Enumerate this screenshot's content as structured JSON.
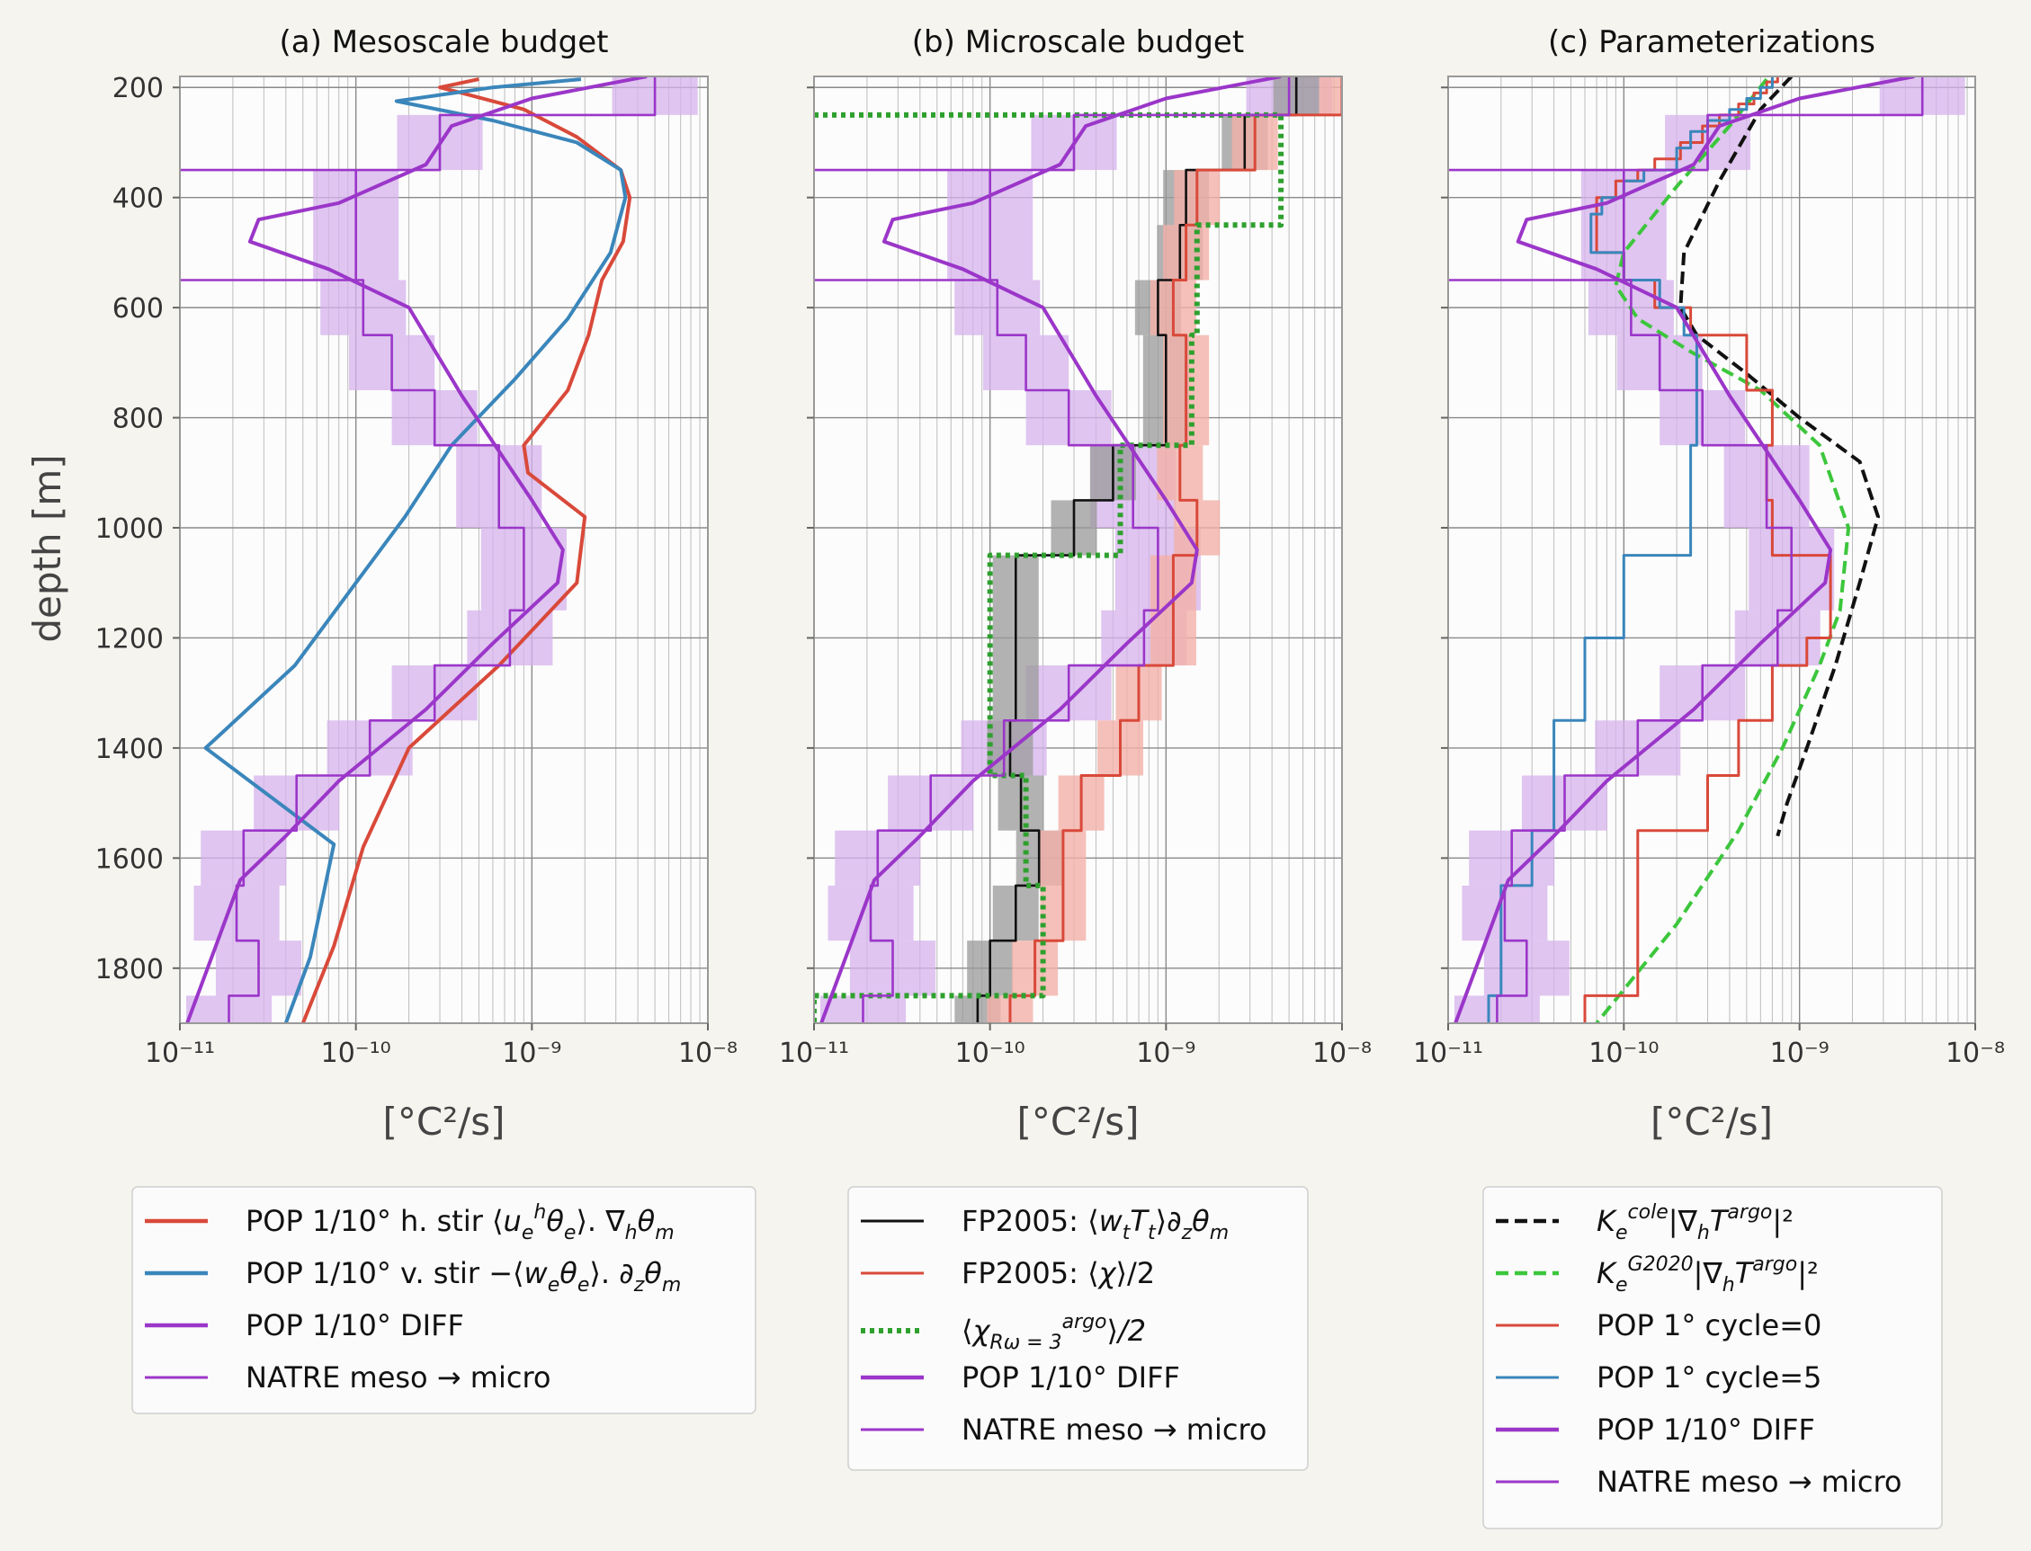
{
  "figure": {
    "ylabel": "depth [m]",
    "xlabel": "[°C²/s]",
    "x_ticks": [
      "10⁻¹¹",
      "10⁻¹⁰",
      "10⁻⁹",
      "10⁻⁸"
    ],
    "y_ticks": [
      "200",
      "400",
      "600",
      "800",
      "1000",
      "1200",
      "1400",
      "1600",
      "1800"
    ],
    "colors": {
      "red": "#d9493a",
      "blue": "#3a86bb",
      "purple": "#9b36c9",
      "black": "#111111",
      "green": "#2ea02e",
      "lightgreen": "#3cc63c",
      "shade_purple": "#d6b3ec",
      "shade_gray": "#999999",
      "shade_red": "#f2b0a8"
    }
  },
  "chart_data": [
    {
      "type": "line",
      "title": "(a) Mesoscale budget",
      "xscale": "log",
      "xlim": [
        1e-11,
        1e-08
      ],
      "ylim": [
        1900,
        180
      ],
      "grid": true,
      "series": [
        {
          "name": "POP 1/10° h. stir ⟨u_e^h θ_e⟩. ∇_h θ_m",
          "color": "red",
          "x": [
            5e-10,
            3e-10,
            4e-10,
            9e-10,
            1.8e-09,
            3.2e-09,
            3.6e-09,
            3.3e-09,
            2.5e-09,
            2.1e-09,
            1.6e-09,
            1.2e-09,
            9e-10,
            9.5e-10,
            2e-09,
            1.8e-09,
            6.5e-10,
            2e-10,
            1.1e-10,
            7.5e-11,
            5e-11
          ],
          "y": [
            185,
            200,
            210,
            240,
            290,
            350,
            400,
            480,
            550,
            650,
            750,
            800,
            850,
            900,
            980,
            1100,
            1250,
            1400,
            1580,
            1760,
            1900
          ]
        },
        {
          "name": "POP 1/10° v. stir −⟨w_e θ_e⟩. ∂_z θ_m",
          "color": "blue",
          "x": [
            1.9e-09,
            6e-10,
            1.7e-10,
            6e-10,
            1.8e-09,
            3.2e-09,
            3.4e-09,
            2.8e-09,
            1.6e-09,
            8e-10,
            3.5e-10,
            1.9e-10,
            1e-10,
            4.5e-11,
            1.4e-11,
            7.5e-11,
            5.5e-11,
            4e-11
          ],
          "y": [
            185,
            200,
            225,
            260,
            300,
            350,
            400,
            500,
            620,
            730,
            850,
            980,
            1100,
            1250,
            1400,
            1575,
            1780,
            1900
          ]
        },
        {
          "name": "POP 1/10° DIFF",
          "color": "purple",
          "x": [
            4.5e-09,
            1e-09,
            3.5e-10,
            2.5e-10,
            8e-11,
            2.8e-11,
            2.5e-11,
            7e-11,
            2e-10,
            4e-10,
            1e-09,
            1.5e-09,
            1.4e-09,
            6e-10,
            2.5e-10,
            8e-11,
            4e-11,
            2.2e-11,
            1.6e-11,
            1.1e-11
          ],
          "y": [
            180,
            220,
            270,
            340,
            410,
            440,
            480,
            530,
            600,
            760,
            950,
            1040,
            1100,
            1210,
            1330,
            1460,
            1560,
            1640,
            1760,
            1900
          ]
        },
        {
          "name": "NATRE meso → micro",
          "color": "purple",
          "style": "step",
          "x": [
            5e-09,
            3e-10,
            1e-11,
            1e-10,
            1e-11,
            1.1e-10,
            1.6e-10,
            2.8e-10,
            6.5e-10,
            9e-10,
            7.5e-10,
            2.8e-10,
            1.2e-10,
            4.6e-11,
            2.3e-11,
            2.1e-11,
            2.8e-11,
            1.9e-11
          ],
          "y": [
            180,
            250,
            350,
            350,
            550,
            550,
            650,
            750,
            850,
            1000,
            1150,
            1250,
            1350,
            1450,
            1550,
            1650,
            1750,
            1850
          ]
        }
      ]
    },
    {
      "type": "line",
      "title": "(b) Microscale budget",
      "xscale": "log",
      "xlim": [
        1e-11,
        1e-08
      ],
      "ylim": [
        1900,
        180
      ],
      "grid": true,
      "series": [
        {
          "name": "FP2005: ⟨w_t T_t⟩∂_z θ_m",
          "color": "black",
          "style": "step",
          "x": [
            5.5e-09,
            2.8e-09,
            1.3e-09,
            1.2e-09,
            9e-10,
            1e-09,
            5e-10,
            3e-10,
            1.4e-10,
            1.3e-10,
            1.5e-10,
            1.9e-10,
            1.4e-10,
            1e-10,
            8.5e-11
          ],
          "y": [
            180,
            250,
            350,
            450,
            550,
            650,
            850,
            950,
            1050,
            1350,
            1450,
            1550,
            1650,
            1750,
            1850
          ]
        },
        {
          "name": "FP2005: ⟨χ⟩/2",
          "color": "red",
          "style": "step",
          "x": [
            1e-08,
            3.2e-09,
            1.5e-09,
            1.3e-09,
            1.1e-09,
            1.3e-09,
            1.2e-09,
            1.5e-09,
            1.1e-09,
            7e-10,
            5.5e-10,
            3.3e-10,
            2.6e-10,
            1.8e-10,
            1.3e-10
          ],
          "y": [
            180,
            250,
            350,
            450,
            550,
            650,
            850,
            950,
            1050,
            1250,
            1350,
            1450,
            1550,
            1750,
            1850
          ]
        },
        {
          "name": "⟨χ⟩^argo_Rω=3 /2",
          "color": "green",
          "style": "step",
          "x": [
            1e-11,
            4.5e-09,
            1.5e-09,
            1.4e-09,
            5.5e-10,
            1e-10,
            1.6e-10,
            2e-10,
            1e-11
          ],
          "y": [
            250,
            250,
            450,
            650,
            850,
            1050,
            1450,
            1650,
            1850
          ]
        },
        {
          "name": "POP 1/10° DIFF",
          "color": "purple",
          "x": [
            4.5e-09,
            1e-09,
            3.5e-10,
            2.5e-10,
            8e-11,
            2.8e-11,
            2.5e-11,
            7e-11,
            2e-10,
            4e-10,
            1e-09,
            1.5e-09,
            1.4e-09,
            6e-10,
            2.5e-10,
            8e-11,
            4e-11,
            2.2e-11,
            1.6e-11,
            1.1e-11
          ],
          "y": [
            180,
            220,
            270,
            340,
            410,
            440,
            480,
            530,
            600,
            760,
            950,
            1040,
            1100,
            1210,
            1330,
            1460,
            1560,
            1640,
            1760,
            1900
          ]
        },
        {
          "name": "NATRE meso → micro",
          "color": "purple",
          "style": "step",
          "x": [
            5e-09,
            3e-10,
            1e-11,
            1e-10,
            1e-11,
            1.1e-10,
            1.6e-10,
            2.8e-10,
            6.5e-10,
            9e-10,
            7.5e-10,
            2.8e-10,
            1.2e-10,
            4.6e-11,
            2.3e-11,
            2.1e-11,
            2.8e-11,
            1.9e-11
          ],
          "y": [
            180,
            250,
            350,
            350,
            550,
            550,
            650,
            750,
            850,
            1000,
            1150,
            1250,
            1350,
            1450,
            1550,
            1650,
            1750,
            1850
          ]
        }
      ]
    },
    {
      "type": "line",
      "title": "(c) Parameterizations",
      "xscale": "log",
      "xlim": [
        1e-11,
        1e-08
      ],
      "ylim": [
        1900,
        180
      ],
      "grid": true,
      "series": [
        {
          "name": "K_e^cole|∇_h T^argo|²",
          "color": "black",
          "style": "dashed",
          "x": [
            9e-10,
            6e-10,
            3.5e-10,
            2.2e-10,
            2.1e-10,
            2.6e-10,
            5e-10,
            1e-09,
            2.2e-09,
            2.8e-09,
            2.2e-09,
            1.6e-09,
            1.1e-09,
            8.5e-10,
            7.5e-10
          ],
          "y": [
            180,
            240,
            370,
            500,
            600,
            650,
            720,
            800,
            880,
            980,
            1100,
            1250,
            1400,
            1500,
            1560
          ]
        },
        {
          "name": "K_e^G2020|∇_h T^argo|²",
          "color": "lightgreen",
          "style": "dashed",
          "x": [
            6.5e-10,
            4e-10,
            2e-10,
            1e-10,
            9e-11,
            1.2e-10,
            2.4e-10,
            6e-10,
            1.3e-09,
            1.9e-09,
            1.7e-09,
            1.3e-09,
            8e-10,
            4.5e-10,
            2e-10,
            7e-11
          ],
          "y": [
            185,
            270,
            380,
            500,
            560,
            620,
            680,
            750,
            850,
            1000,
            1150,
            1250,
            1400,
            1550,
            1720,
            1900
          ]
        },
        {
          "name": "POP 1° cycle=0",
          "color": "red",
          "style": "step",
          "x": [
            7.5e-10,
            6.5e-10,
            5.5e-10,
            4.5e-10,
            3.5e-10,
            2.8e-10,
            2.1e-10,
            1.5e-10,
            1.2e-10,
            9e-11,
            7e-11,
            1e-10,
            1.5e-10,
            2.4e-10,
            5e-10,
            7e-10,
            6.5e-10,
            7e-10,
            1.5e-09,
            1.1e-09,
            7e-10,
            4.5e-10,
            3e-10,
            1.2e-10,
            6e-11
          ],
          "y": [
            180,
            190,
            210,
            230,
            250,
            270,
            300,
            330,
            350,
            370,
            400,
            500,
            550,
            600,
            650,
            750,
            850,
            950,
            1050,
            1200,
            1250,
            1350,
            1450,
            1550,
            1850
          ]
        },
        {
          "name": "POP 1° cycle=5",
          "color": "blue",
          "style": "step",
          "x": [
            7e-10,
            6e-10,
            5e-10,
            4e-10,
            3e-10,
            2.4e-10,
            2e-10,
            1.3e-10,
            1e-10,
            7.5e-11,
            6.5e-11,
            1e-10,
            1.6e-10,
            2.2e-10,
            2.6e-10,
            2.4e-10,
            1e-10,
            6e-11,
            4e-11,
            3e-11,
            2e-11,
            1.7e-11
          ],
          "y": [
            180,
            200,
            220,
            240,
            260,
            280,
            310,
            350,
            370,
            400,
            430,
            500,
            550,
            600,
            650,
            850,
            1050,
            1200,
            1350,
            1550,
            1650,
            1850
          ]
        },
        {
          "name": "POP 1/10° DIFF",
          "color": "purple",
          "x": [
            4.5e-09,
            1e-09,
            3.5e-10,
            2.5e-10,
            8e-11,
            2.8e-11,
            2.5e-11,
            7e-11,
            2e-10,
            4e-10,
            1e-09,
            1.5e-09,
            1.4e-09,
            6e-10,
            2.5e-10,
            8e-11,
            4e-11,
            2.2e-11,
            1.6e-11,
            1.1e-11
          ],
          "y": [
            180,
            220,
            270,
            340,
            410,
            440,
            480,
            530,
            600,
            760,
            950,
            1040,
            1100,
            1210,
            1330,
            1460,
            1560,
            1640,
            1760,
            1900
          ]
        },
        {
          "name": "NATRE meso → micro",
          "color": "purple",
          "style": "step",
          "x": [
            5e-09,
            3e-10,
            1e-11,
            1e-10,
            1e-11,
            1.1e-10,
            1.6e-10,
            2.8e-10,
            6.5e-10,
            9e-10,
            7.5e-10,
            2.8e-10,
            1.2e-10,
            4.6e-11,
            2.3e-11,
            2.1e-11,
            2.8e-11,
            1.9e-11
          ],
          "y": [
            180,
            250,
            350,
            350,
            550,
            550,
            650,
            750,
            850,
            1000,
            1150,
            1250,
            1350,
            1450,
            1550,
            1650,
            1750,
            1850
          ]
        }
      ]
    }
  ],
  "legends": {
    "a": [
      {
        "pre": "POP 1/10° h. stir ⟨",
        "math": "u",
        "sub": "e",
        "sup": "h",
        "post": "θ",
        "sub2": "e",
        "tail": "⟩. ∇",
        "sub3": "h",
        "tail2": "θ",
        "sub4": "m",
        "color": "red",
        "kind": "thick"
      },
      {
        "pre": "POP 1/10° v. stir −⟨",
        "math": "w",
        "sub": "e",
        "post": "θ",
        "sub2": "e",
        "tail": "⟩. ∂",
        "sub3": "z",
        "tail2": "θ",
        "sub4": "m",
        "color": "blue",
        "kind": "thick"
      },
      {
        "pre": "POP 1/10° DIFF",
        "color": "purple",
        "kind": "thick"
      },
      {
        "pre": "NATRE meso → micro",
        "color": "purple",
        "kind": "thin"
      }
    ],
    "b": [
      {
        "pre": "FP2005: ⟨",
        "math": "w",
        "sub": "t",
        "post": "T",
        "sub2": "t",
        "tail": "⟩∂",
        "sub3": "z",
        "tail2": "θ",
        "sub4": "m",
        "color": "black",
        "kind": "thin"
      },
      {
        "pre": "FP2005: ⟨",
        "math": "χ",
        "tail": "⟩/2",
        "color": "red",
        "kind": "thin"
      },
      {
        "pre": "⟨",
        "math": "χ",
        "tail": "⟩",
        "sup": "argo",
        "sub": "Rω = 3",
        "tail2": "/2",
        "color": "green",
        "kind": "dotted"
      },
      {
        "pre": "POP 1/10° DIFF",
        "color": "purple",
        "kind": "thick"
      },
      {
        "pre": "NATRE meso → micro",
        "color": "purple",
        "kind": "thin"
      }
    ],
    "c": [
      {
        "math": "K",
        "sub": "e",
        "sup": "cole",
        "tail": "|∇",
        "sub3": "h",
        "tail2": "T",
        "sup2": "argo",
        "tail3": "|²",
        "color": "black",
        "kind": "dashed"
      },
      {
        "math": "K",
        "sub": "e",
        "sup": "G2020",
        "tail": "|∇",
        "sub3": "h",
        "tail2": "T",
        "sup2": "argo",
        "tail3": "|²",
        "color": "lightgreen",
        "kind": "dashed"
      },
      {
        "pre": "POP 1° cycle=0",
        "color": "red",
        "kind": "thin"
      },
      {
        "pre": "POP 1° cycle=5",
        "color": "blue",
        "kind": "thin"
      },
      {
        "pre": "POP 1/10° DIFF",
        "color": "purple",
        "kind": "thick"
      },
      {
        "pre": "NATRE meso → micro",
        "color": "purple",
        "kind": "thin"
      }
    ]
  }
}
